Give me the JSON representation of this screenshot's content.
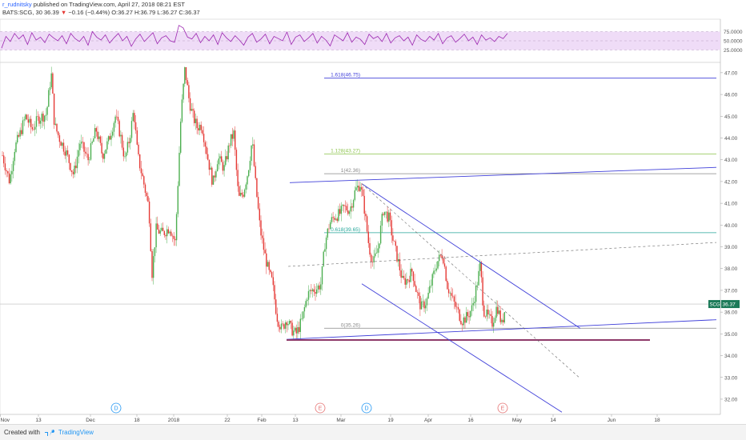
{
  "header": {
    "user": "r_rudnitsky",
    "published_text": "published on TradingView.com, April 27, 2018 08:21 EST",
    "symbol": "BATS:SCG, 30",
    "last": "36.39",
    "arrow": "▼",
    "change": "−0.16 (−0.44%)",
    "ohlc": "O:36.27 H:36.79 L:36.27 C:36.37"
  },
  "footer": {
    "created_with": "Created with",
    "brand": "TradingView"
  },
  "colors": {
    "candle_up": "#4caf50",
    "candle_down": "#e53935",
    "trend": "#3f3fd9",
    "rsi": "#9c27b0",
    "rsi_band": "#efdcf7",
    "fib_1618": "#3f3fd9",
    "fib_1128": "#8bc34a",
    "fib_1": "#888888",
    "fib_0618": "#26a69a",
    "fib_0": "#888888",
    "support": "#8e3a6a",
    "price_tag": "#1b7a58"
  },
  "chart_data": {
    "type": "candlestick",
    "symbol": "SCG",
    "interval": "30",
    "y_ticks": [
      "32.00",
      "33.00",
      "34.00",
      "35.00",
      "36.00",
      "37.00",
      "38.00",
      "39.00",
      "40.00",
      "41.00",
      "42.00",
      "43.00",
      "44.00",
      "45.00",
      "46.00",
      "47.00"
    ],
    "ylim": [
      31.3,
      47.4
    ],
    "x_ticks": [
      {
        "label": "Nov",
        "t": 0.5
      },
      {
        "label": "13",
        "t": 48
      },
      {
        "label": "Dec",
        "t": 113
      },
      {
        "label": "18",
        "t": 171
      },
      {
        "label": "2018",
        "t": 217
      },
      {
        "label": "22",
        "t": 284
      },
      {
        "label": "Feb",
        "t": 327
      },
      {
        "label": "13",
        "t": 369
      },
      {
        "label": "Mar",
        "t": 426
      },
      {
        "label": "19",
        "t": 488
      },
      {
        "label": "Apr",
        "t": 535
      },
      {
        "label": "16",
        "t": 588
      },
      {
        "label": "May",
        "t": 646
      },
      {
        "label": "14",
        "t": 691
      },
      {
        "label": "Jun",
        "t": 764
      },
      {
        "label": "18",
        "t": 821
      }
    ],
    "close_path": [
      [
        3,
        43.2
      ],
      [
        12,
        42.0
      ],
      [
        18,
        43.5
      ],
      [
        25,
        44.2
      ],
      [
        32,
        45.0
      ],
      [
        40,
        44.4
      ],
      [
        48,
        44.9
      ],
      [
        58,
        45.1
      ],
      [
        64,
        47.0
      ],
      [
        68,
        44.6
      ],
      [
        74,
        44.0
      ],
      [
        82,
        43.4
      ],
      [
        92,
        42.3
      ],
      [
        100,
        43.8
      ],
      [
        110,
        43.0
      ],
      [
        120,
        44.4
      ],
      [
        128,
        43.2
      ],
      [
        136,
        43.9
      ],
      [
        144,
        45.0
      ],
      [
        150,
        44.2
      ],
      [
        156,
        43.0
      ],
      [
        162,
        44.0
      ],
      [
        167,
        45.3
      ],
      [
        172,
        43.2
      ],
      [
        178,
        42.2
      ],
      [
        186,
        40.8
      ],
      [
        190,
        37.8
      ],
      [
        195,
        39.8
      ],
      [
        203,
        39.6
      ],
      [
        212,
        39.9
      ],
      [
        219,
        39.2
      ],
      [
        226,
        45.0
      ],
      [
        231,
        47.2
      ],
      [
        236,
        45.8
      ],
      [
        240,
        45.1
      ],
      [
        246,
        44.5
      ],
      [
        252,
        44.6
      ],
      [
        260,
        43.0
      ],
      [
        266,
        41.9
      ],
      [
        272,
        43.1
      ],
      [
        280,
        42.6
      ],
      [
        287,
        43.8
      ],
      [
        292,
        44.2
      ],
      [
        298,
        41.2
      ],
      [
        304,
        41.5
      ],
      [
        310,
        42.5
      ],
      [
        315,
        43.9
      ],
      [
        319,
        42.0
      ],
      [
        325,
        39.8
      ],
      [
        331,
        38.6
      ],
      [
        336,
        37.8
      ],
      [
        340,
        37.4
      ],
      [
        346,
        35.8
      ],
      [
        352,
        35.2
      ],
      [
        358,
        35.7
      ],
      [
        364,
        35.2
      ],
      [
        370,
        35.0
      ],
      [
        377,
        35.6
      ],
      [
        384,
        36.8
      ],
      [
        390,
        37.0
      ],
      [
        396,
        37.1
      ],
      [
        401,
        37.3
      ],
      [
        406,
        39.2
      ],
      [
        412,
        40.1
      ],
      [
        418,
        40.4
      ],
      [
        424,
        40.5
      ],
      [
        430,
        40.8
      ],
      [
        437,
        40.7
      ],
      [
        444,
        41.6
      ],
      [
        450,
        41.9
      ],
      [
        455,
        40.8
      ],
      [
        461,
        39.0
      ],
      [
        466,
        38.2
      ],
      [
        472,
        38.9
      ],
      [
        479,
        40.7
      ],
      [
        486,
        40.3
      ],
      [
        491,
        39.3
      ],
      [
        497,
        38.4
      ],
      [
        503,
        37.4
      ],
      [
        509,
        37.5
      ],
      [
        515,
        37.9
      ],
      [
        520,
        37.0
      ],
      [
        526,
        36.2
      ],
      [
        533,
        36.5
      ],
      [
        540,
        37.5
      ],
      [
        546,
        38.3
      ],
      [
        553,
        38.7
      ],
      [
        559,
        37.2
      ],
      [
        565,
        36.6
      ],
      [
        571,
        36.1
      ],
      [
        577,
        35.6
      ],
      [
        584,
        35.8
      ],
      [
        590,
        36.2
      ],
      [
        597,
        37.5
      ],
      [
        600,
        38.2
      ],
      [
        604,
        36.1
      ],
      [
        609,
        35.8
      ],
      [
        615,
        35.5
      ],
      [
        621,
        36.3
      ],
      [
        627,
        35.4
      ],
      [
        632,
        36.4
      ]
    ],
    "rsi": {
      "levels": [
        "75.0000",
        "50.0000",
        "25.0000"
      ],
      "ylim": [
        0,
        100
      ],
      "values": [
        30,
        62,
        48,
        70,
        55,
        66,
        40,
        72,
        52,
        60,
        45,
        68,
        58,
        50,
        64,
        42,
        70,
        56,
        48,
        62,
        38,
        75,
        60,
        52,
        66,
        44,
        58,
        70,
        50,
        62,
        35,
        55,
        68,
        48,
        60,
        72,
        42,
        58,
        64,
        50,
        46,
        92,
        85,
        60,
        55,
        70,
        45,
        62,
        50,
        66,
        40,
        72,
        58,
        48,
        64,
        52,
        38,
        60,
        70,
        46,
        55,
        68,
        42,
        62,
        56,
        50,
        74,
        40,
        60,
        66,
        48,
        58,
        70,
        44,
        62,
        52,
        36,
        66,
        58,
        50,
        72,
        46,
        60,
        54,
        40,
        68,
        56,
        62,
        48,
        70,
        44,
        58,
        64,
        50,
        60,
        38,
        66,
        54,
        48,
        62,
        52,
        70,
        42,
        58,
        64,
        46,
        56,
        68,
        50,
        60,
        40,
        66,
        52,
        58,
        48,
        62,
        56,
        70
      ]
    },
    "fibonacci": [
      {
        "ratio": "1.618",
        "price": 46.75,
        "label": "1.618(46.75)"
      },
      {
        "ratio": "1.128",
        "price": 43.27,
        "label": "1.128(43.27)"
      },
      {
        "ratio": "1",
        "price": 42.36,
        "label": "1(42.36)"
      },
      {
        "ratio": "0.618",
        "price": 39.65,
        "label": "0.618(39.65)"
      },
      {
        "ratio": "0",
        "price": 35.26,
        "label": "0(35.26)"
      }
    ],
    "price_tag": {
      "symbol": "SCG",
      "value": "36.37",
      "price": 36.37
    },
    "events": [
      {
        "label": "D",
        "t": 145
      },
      {
        "label": "E",
        "t": 400
      },
      {
        "label": "D",
        "t": 458
      },
      {
        "label": "E",
        "t": 628
      }
    ],
    "trendlines": [
      {
        "kind": "upper_channel",
        "from": [
          362,
          41.95
        ],
        "to": [
          895,
          42.65
        ]
      },
      {
        "kind": "support_rising",
        "from": [
          358,
          34.75
        ],
        "to": [
          895,
          35.65
        ]
      },
      {
        "kind": "support_flat",
        "from": [
          358,
          34.72
        ],
        "to": [
          812,
          34.72
        ]
      },
      {
        "kind": "down_upper",
        "from": [
          452,
          41.9
        ],
        "to": [
          725,
          35.25
        ]
      },
      {
        "kind": "down_lower",
        "from": [
          452,
          37.3
        ],
        "to": [
          702,
          31.4
        ]
      },
      {
        "kind": "dashed_down",
        "from": [
          452,
          41.9
        ],
        "to": [
          725,
          32.95
        ]
      },
      {
        "kind": "dashed_up",
        "from": [
          360,
          38.1
        ],
        "to": [
          895,
          39.2
        ]
      }
    ]
  }
}
